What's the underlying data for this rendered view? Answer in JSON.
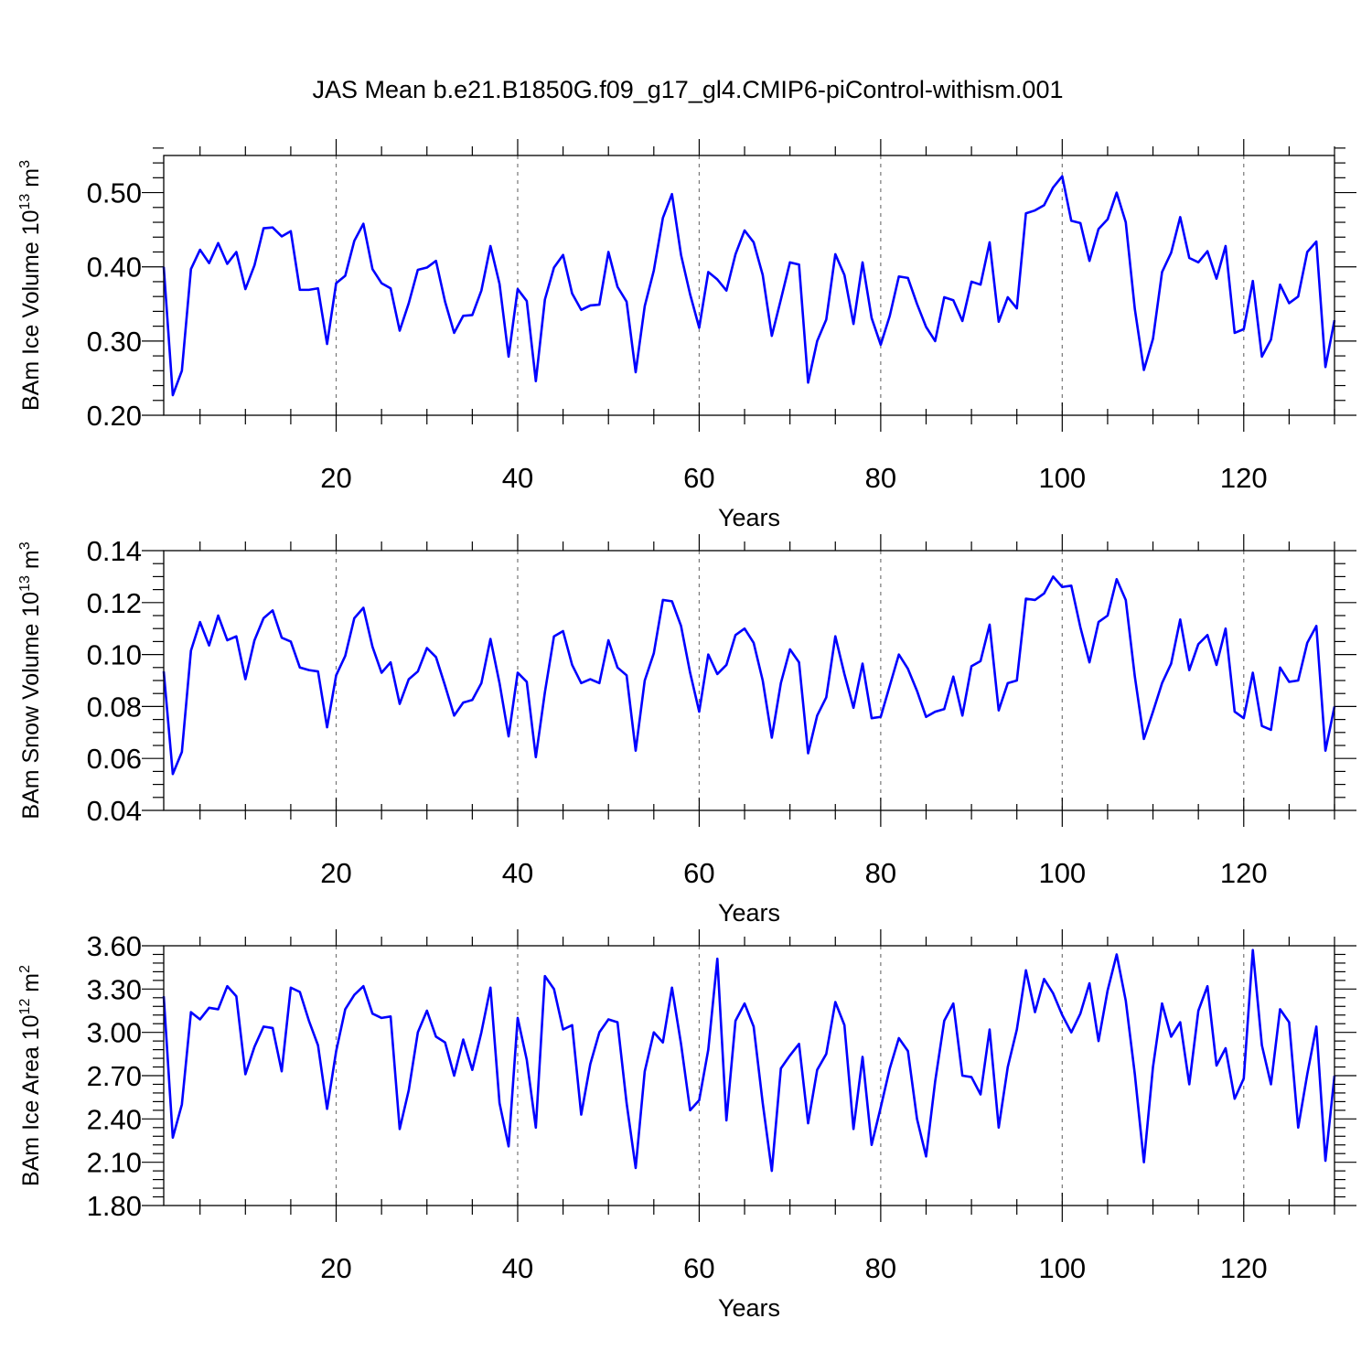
{
  "figure_title": "JAS Mean b.e21.B1850G.f09_g17_gl4.CMIP6-piControl-withism.001",
  "line_color": "#0000ff",
  "chart_data": [
    {
      "type": "line",
      "name": "ice-volume",
      "ylabel": "BAm Ice Volume 10",
      "ylabel_exp": "13",
      "ylabel_unit": " m",
      "ylabel_unit_exp": "3",
      "xlabel": "Years",
      "xlim": [
        1,
        130
      ],
      "ylim": [
        0.2,
        0.55
      ],
      "xticks": [
        20,
        40,
        60,
        80,
        100,
        120
      ],
      "yticks": [
        0.2,
        0.3,
        0.4,
        0.5
      ],
      "ytick_labels": [
        "0.20",
        "0.30",
        "0.40",
        "0.50"
      ],
      "yminor": 0.02,
      "grid": "vertical dashed at major x ticks",
      "series": [
        {
          "name": "BAm Ice Volume",
          "values": [
            0.4,
            0.227,
            0.26,
            0.397,
            0.423,
            0.405,
            0.432,
            0.404,
            0.42,
            0.37,
            0.402,
            0.452,
            0.453,
            0.441,
            0.448,
            0.369,
            0.369,
            0.371,
            0.296,
            0.378,
            0.388,
            0.435,
            0.458,
            0.397,
            0.378,
            0.371,
            0.314,
            0.351,
            0.396,
            0.399,
            0.408,
            0.353,
            0.311,
            0.334,
            0.335,
            0.368,
            0.428,
            0.377,
            0.279,
            0.37,
            0.354,
            0.246,
            0.356,
            0.399,
            0.416,
            0.364,
            0.342,
            0.348,
            0.349,
            0.42,
            0.373,
            0.353,
            0.258,
            0.347,
            0.395,
            0.466,
            0.498,
            0.416,
            0.363,
            0.318,
            0.393,
            0.383,
            0.368,
            0.417,
            0.449,
            0.433,
            0.389,
            0.307,
            0.356,
            0.406,
            0.403,
            0.244,
            0.3,
            0.329,
            0.417,
            0.389,
            0.323,
            0.406,
            0.331,
            0.295,
            0.334,
            0.387,
            0.385,
            0.35,
            0.319,
            0.3,
            0.359,
            0.355,
            0.327,
            0.38,
            0.376,
            0.433,
            0.326,
            0.359,
            0.344,
            0.472,
            0.476,
            0.483,
            0.507,
            0.522,
            0.462,
            0.459,
            0.408,
            0.451,
            0.464,
            0.5,
            0.46,
            0.343,
            0.261,
            0.303,
            0.393,
            0.419,
            0.467,
            0.412,
            0.406,
            0.421,
            0.384,
            0.428,
            0.311,
            0.316,
            0.381,
            0.279,
            0.302,
            0.376,
            0.351,
            0.36,
            0.42,
            0.434,
            0.265,
            0.328
          ]
        }
      ]
    },
    {
      "type": "line",
      "name": "snow-volume",
      "ylabel": "BAm Snow Volume 10",
      "ylabel_exp": "13",
      "ylabel_unit": " m",
      "ylabel_unit_exp": "3",
      "xlabel": "Years",
      "xlim": [
        1,
        130
      ],
      "ylim": [
        0.04,
        0.14
      ],
      "xticks": [
        20,
        40,
        60,
        80,
        100,
        120
      ],
      "yticks": [
        0.04,
        0.06,
        0.08,
        0.1,
        0.12,
        0.14
      ],
      "ytick_labels": [
        "0.04",
        "0.06",
        "0.08",
        "0.10",
        "0.12",
        "0.14"
      ],
      "yminor": 0.005,
      "grid": "vertical dashed at major x ticks",
      "series": [
        {
          "name": "BAm Snow Volume",
          "values": [
            0.0935,
            0.054,
            0.0625,
            0.1015,
            0.1125,
            0.1035,
            0.115,
            0.1055,
            0.107,
            0.0905,
            0.1055,
            0.114,
            0.117,
            0.1065,
            0.105,
            0.095,
            0.094,
            0.0935,
            0.072,
            0.092,
            0.0995,
            0.114,
            0.118,
            0.103,
            0.093,
            0.097,
            0.081,
            0.0905,
            0.0935,
            0.1025,
            0.099,
            0.088,
            0.0765,
            0.0815,
            0.0825,
            0.089,
            0.106,
            0.089,
            0.0685,
            0.093,
            0.0895,
            0.0605,
            0.0855,
            0.107,
            0.109,
            0.096,
            0.089,
            0.0905,
            0.089,
            0.1055,
            0.095,
            0.092,
            0.063,
            0.09,
            0.1005,
            0.121,
            0.1205,
            0.111,
            0.093,
            0.078,
            0.1,
            0.0925,
            0.096,
            0.1075,
            0.11,
            0.1045,
            0.09,
            0.068,
            0.089,
            0.102,
            0.097,
            0.062,
            0.0765,
            0.0835,
            0.107,
            0.0925,
            0.0795,
            0.0965,
            0.0755,
            0.076,
            0.088,
            0.1,
            0.0945,
            0.086,
            0.076,
            0.078,
            0.079,
            0.0915,
            0.0765,
            0.0955,
            0.0975,
            0.1115,
            0.0785,
            0.089,
            0.09,
            0.1215,
            0.121,
            0.1235,
            0.13,
            0.126,
            0.1265,
            0.1105,
            0.097,
            0.1125,
            0.115,
            0.129,
            0.121,
            0.0915,
            0.0675,
            0.078,
            0.089,
            0.0965,
            0.1135,
            0.094,
            0.104,
            0.1075,
            0.096,
            0.11,
            0.078,
            0.0755,
            0.093,
            0.0725,
            0.071,
            0.095,
            0.0895,
            0.09,
            0.1045,
            0.111,
            0.063,
            0.08
          ]
        }
      ]
    },
    {
      "type": "line",
      "name": "ice-area",
      "ylabel": "BAm Ice Area 10",
      "ylabel_exp": "12",
      "ylabel_unit": " m",
      "ylabel_unit_exp": "2",
      "xlabel": "Years",
      "xlim": [
        1,
        130
      ],
      "ylim": [
        1.8,
        3.6
      ],
      "xticks": [
        20,
        40,
        60,
        80,
        100,
        120
      ],
      "yticks": [
        1.8,
        2.1,
        2.4,
        2.7,
        3.0,
        3.3,
        3.6
      ],
      "ytick_labels": [
        "1.80",
        "2.10",
        "2.40",
        "2.70",
        "3.00",
        "3.30",
        "3.60"
      ],
      "yminor": 0.06,
      "grid": "vertical dashed at major x ticks",
      "series": [
        {
          "name": "BAm Ice Area",
          "values": [
            3.25,
            2.27,
            2.5,
            3.14,
            3.09,
            3.17,
            3.16,
            3.32,
            3.25,
            2.71,
            2.9,
            3.04,
            3.03,
            2.73,
            3.31,
            3.28,
            3.08,
            2.91,
            2.47,
            2.87,
            3.16,
            3.26,
            3.32,
            3.13,
            3.1,
            3.11,
            2.33,
            2.6,
            3.0,
            3.15,
            2.97,
            2.93,
            2.7,
            2.95,
            2.74,
            3.0,
            3.31,
            2.51,
            2.21,
            3.1,
            2.81,
            2.34,
            3.39,
            3.3,
            3.02,
            3.05,
            2.43,
            2.78,
            3.0,
            3.09,
            3.07,
            2.51,
            2.06,
            2.73,
            3.0,
            2.93,
            3.31,
            2.92,
            2.46,
            2.53,
            2.88,
            3.51,
            2.39,
            3.08,
            3.2,
            3.04,
            2.51,
            2.04,
            2.75,
            2.84,
            2.92,
            2.37,
            2.74,
            2.85,
            3.21,
            3.05,
            2.33,
            2.83,
            2.22,
            2.48,
            2.75,
            2.96,
            2.87,
            2.4,
            2.14,
            2.66,
            3.08,
            3.2,
            2.7,
            2.69,
            2.57,
            3.02,
            2.34,
            2.76,
            3.02,
            3.43,
            3.14,
            3.37,
            3.27,
            3.12,
            3.0,
            3.13,
            3.34,
            2.94,
            3.29,
            3.54,
            3.22,
            2.71,
            2.1,
            2.76,
            3.2,
            2.97,
            3.07,
            2.64,
            3.15,
            3.32,
            2.77,
            2.89,
            2.54,
            2.68,
            3.57,
            2.91,
            2.64,
            3.16,
            3.07,
            2.34,
            2.71,
            3.04,
            2.11,
            2.7
          ]
        }
      ]
    }
  ]
}
